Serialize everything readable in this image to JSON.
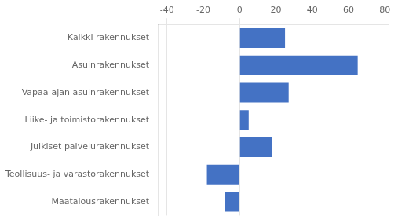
{
  "chart_data": {
    "type": "bar",
    "orientation": "horizontal",
    "categories": [
      "Kaikki rakennukset",
      "Asuinrakennukset",
      "Vapaa-ajan asuinrakennukset",
      "Liike- ja toimistorakennukset",
      "Julkiset palvelurakennukset",
      "Teollisuus- ja varastorakennukset",
      "Maatalousrakennukset"
    ],
    "values": [
      25,
      65,
      27,
      5,
      18,
      -18,
      -8
    ],
    "color": "#4472C4",
    "xlim": [
      -45,
      82
    ],
    "xticks": [
      -40,
      -20,
      0,
      20,
      40,
      60,
      80
    ],
    "grid": true
  }
}
